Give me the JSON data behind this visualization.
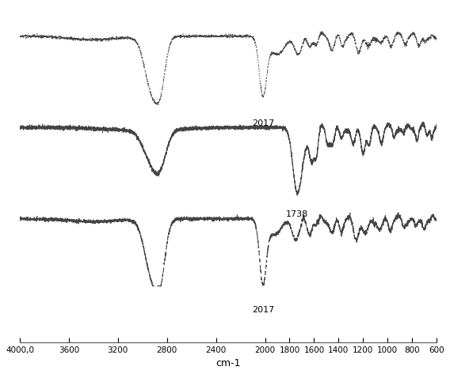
{
  "xmin": 4000,
  "xmax": 600,
  "xlabel": "cm-1",
  "annotation1": "2017",
  "annotation2": "1738",
  "annotation3": "2017",
  "line_color": "#444444",
  "bg_color": "#ffffff",
  "tick_labels": [
    "4000,0",
    "3600",
    "3200",
    "2800",
    "2400",
    "2000",
    "1800",
    "1600",
    "1400",
    "1200",
    "1000",
    "800",
    "600"
  ],
  "tick_positions": [
    4000,
    3600,
    3200,
    2800,
    2400,
    2000,
    1800,
    1600,
    1400,
    1200,
    1000,
    800,
    600
  ]
}
